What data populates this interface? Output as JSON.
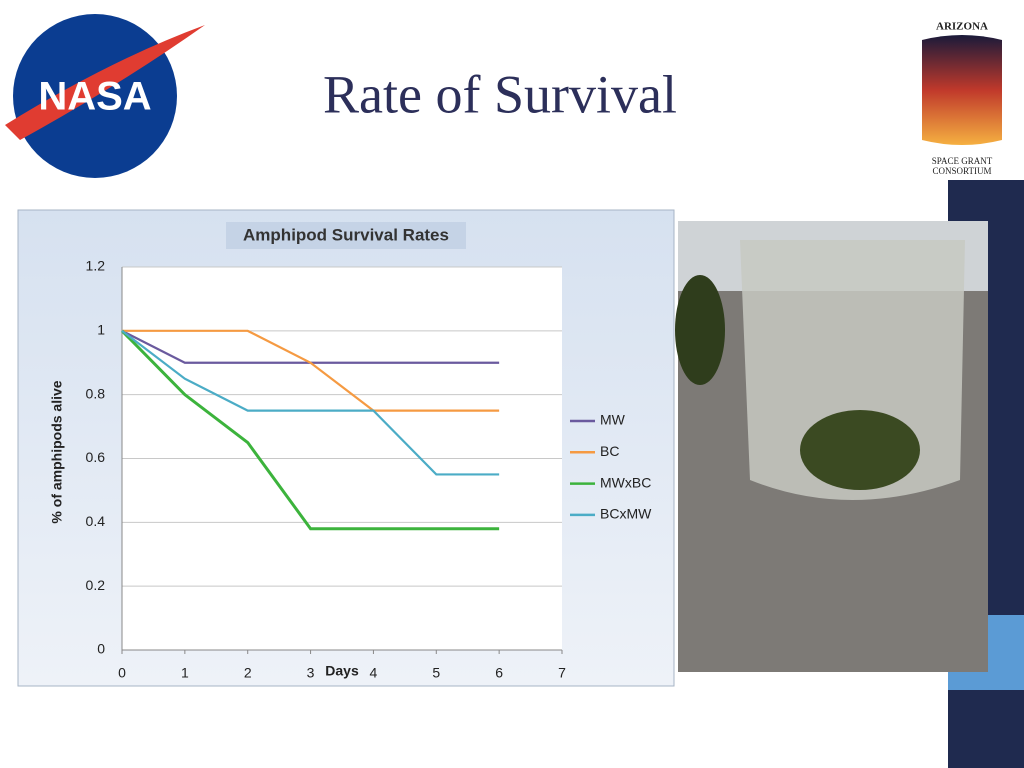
{
  "slide": {
    "title": "Rate of Survival",
    "logo_left": "NASA",
    "logo_right_top": "ARIZONA",
    "logo_right_bottom": [
      "SPACE GRANT",
      "CONSORTIUM"
    ]
  },
  "chart_data": {
    "type": "line",
    "title": "Amphipod Survival Rates",
    "x_label": "Days",
    "y_label": "% of amphipods alive",
    "x": [
      0,
      1,
      2,
      3,
      4,
      5,
      6
    ],
    "xlim": [
      0,
      7
    ],
    "xticks": [
      0,
      1,
      2,
      3,
      4,
      5,
      6,
      7
    ],
    "ylim": [
      0,
      1.2
    ],
    "yticks": [
      0,
      0.2,
      0.4,
      0.6,
      0.8,
      1,
      1.2
    ],
    "grid": true,
    "legend": "right",
    "series": [
      {
        "name": "MW",
        "color": "#6a5a9e",
        "values": [
          1,
          0.9,
          0.9,
          0.9,
          0.9,
          0.9,
          0.9
        ]
      },
      {
        "name": "BC",
        "color": "#f59a42",
        "values": [
          1,
          1,
          1,
          0.9,
          0.75,
          0.75,
          0.75
        ]
      },
      {
        "name": "MWxBC",
        "color": "#3cb33c",
        "values": [
          1,
          0.8,
          0.65,
          0.38,
          0.38,
          0.38,
          0.38
        ]
      },
      {
        "name": "BCxMW",
        "color": "#4bacc6",
        "values": [
          1,
          0.85,
          0.75,
          0.75,
          0.75,
          0.55,
          0.55
        ]
      }
    ]
  }
}
